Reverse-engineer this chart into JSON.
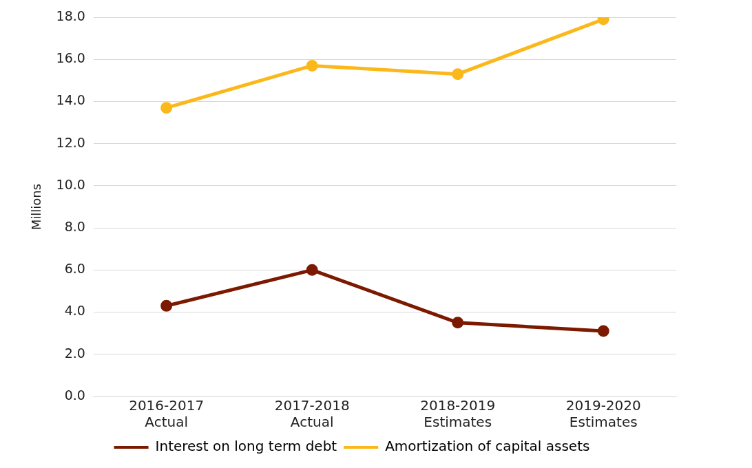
{
  "chart_data": {
    "type": "line",
    "ylabel": "Millions",
    "categories": [
      "2016-2017\nActual",
      "2017-2018\nActual",
      "2018-2019\nEstimates",
      "2019-2020\nEstimates"
    ],
    "series": [
      {
        "name": "Interest on long term debt",
        "color": "#7b1a00",
        "values": [
          4.3,
          6.0,
          3.5,
          3.1
        ]
      },
      {
        "name": "Amortization of capital assets",
        "color": "#fbb81b",
        "values": [
          13.7,
          15.7,
          15.3,
          17.9
        ]
      }
    ],
    "ylim": [
      0,
      18
    ],
    "yticks": [
      {
        "value": 0,
        "label": "0.0"
      },
      {
        "value": 2,
        "label": "2.0"
      },
      {
        "value": 4,
        "label": "4.0"
      },
      {
        "value": 6,
        "label": "6.0"
      },
      {
        "value": 8,
        "label": "8.0"
      },
      {
        "value": 10,
        "label": "10.0"
      },
      {
        "value": 12,
        "label": "12.0"
      },
      {
        "value": 14,
        "label": "14.0"
      },
      {
        "value": 16,
        "label": "16.0"
      },
      {
        "value": 18,
        "label": "18.0"
      }
    ],
    "grid": "y",
    "legend": "bottom",
    "marker": "circle",
    "line_style": "solid"
  }
}
